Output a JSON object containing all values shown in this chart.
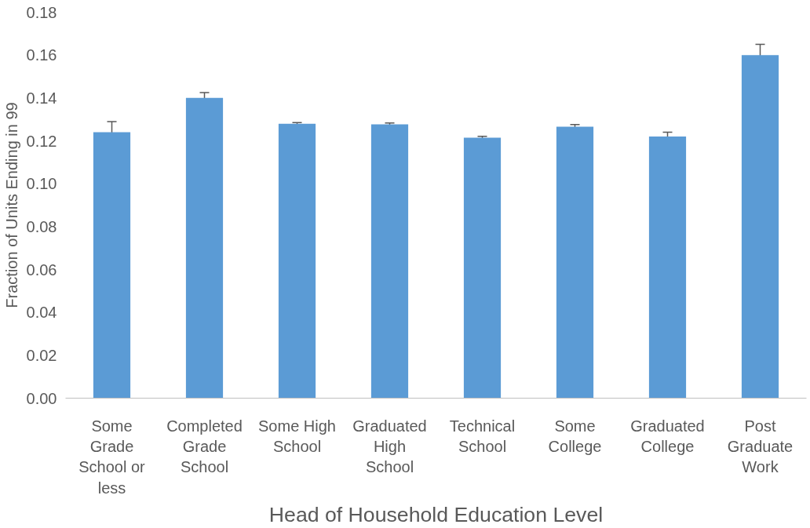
{
  "chart_data": {
    "type": "bar",
    "xlabel": "Head of Household Education Level",
    "ylabel": "Fraction of Units Ending in 99",
    "categories": [
      "Some Grade School or less",
      "Completed Grade School",
      "Some High School",
      "Graduated High School",
      "Technical School",
      "Some College",
      "Graduated College",
      "Post Graduate Work"
    ],
    "values": [
      0.124,
      0.14,
      0.128,
      0.1277,
      0.1215,
      0.1266,
      0.122,
      0.16
    ],
    "errors": [
      0.005,
      0.0025,
      0.0005,
      0.0006,
      0.0006,
      0.001,
      0.002,
      0.005
    ],
    "color": "#5b9bd5",
    "ylim": [
      0,
      0.18
    ],
    "yticks": [
      {
        "value": 0,
        "label": "0.00"
      },
      {
        "value": 0.02,
        "label": "0.02"
      },
      {
        "value": 0.04,
        "label": "0.04"
      },
      {
        "value": 0.06,
        "label": "0.06"
      },
      {
        "value": 0.08,
        "label": "0.08"
      },
      {
        "value": 0.1,
        "label": "0.10"
      },
      {
        "value": 0.12,
        "label": "0.12"
      },
      {
        "value": 0.14,
        "label": "0.14"
      },
      {
        "value": 0.16,
        "label": "0.16"
      },
      {
        "value": 0.18,
        "label": "0.18"
      }
    ],
    "grid": false
  }
}
